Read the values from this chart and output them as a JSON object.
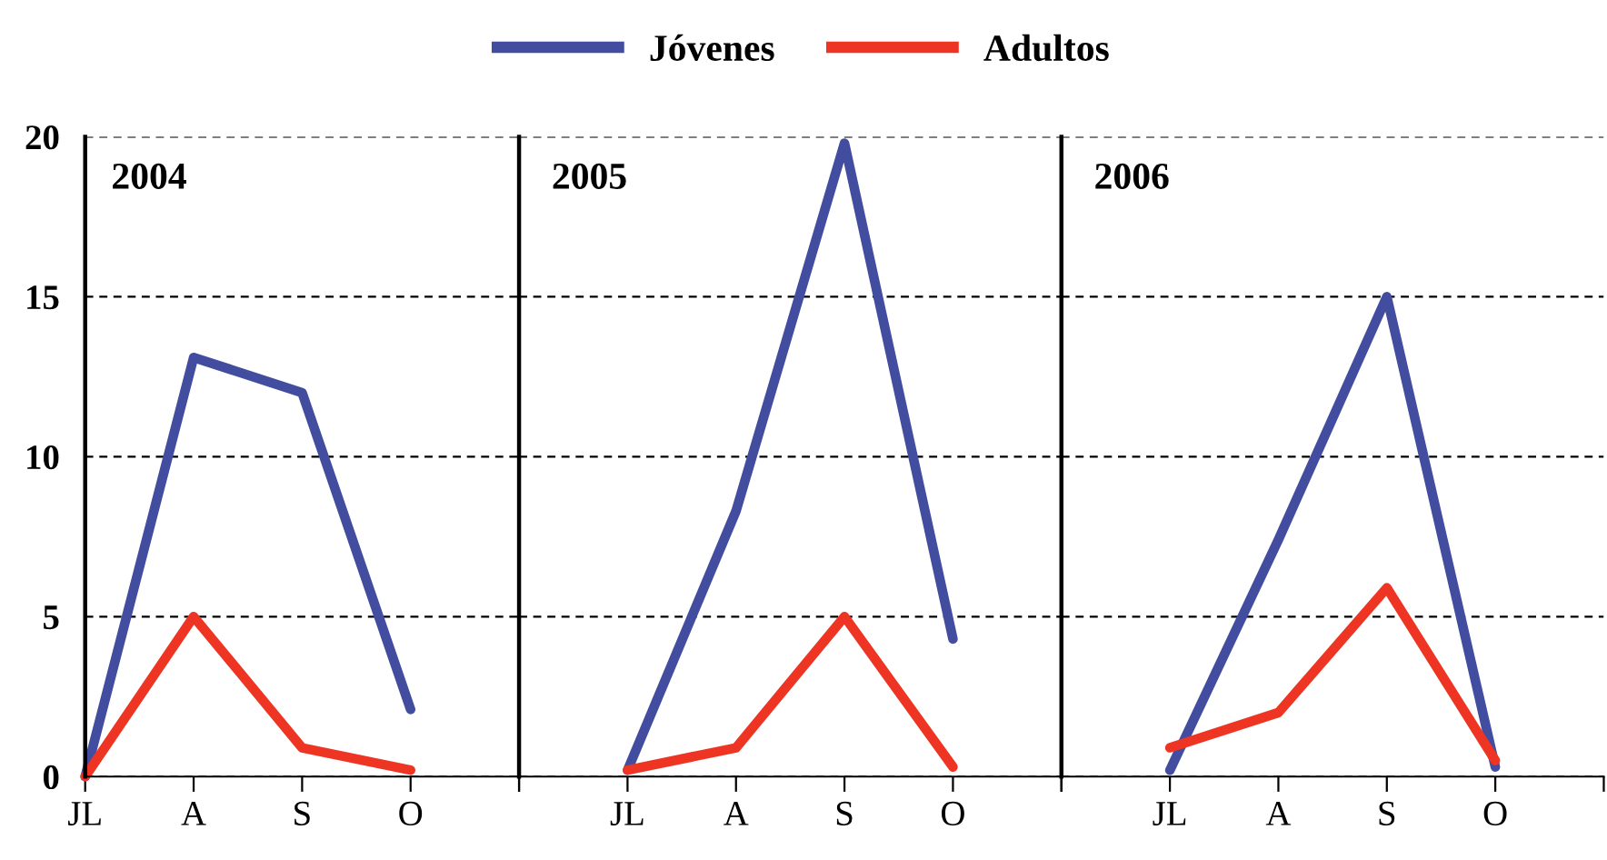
{
  "chart_data": [
    {
      "type": "line",
      "title": "2004",
      "categories": [
        "JL",
        "A",
        "S",
        "O"
      ],
      "ylim": [
        0,
        20
      ],
      "yticks": [
        0,
        5,
        10,
        15,
        20
      ],
      "grid": "y",
      "legend": "top",
      "marker": "none",
      "line_style": "solid",
      "series": [
        {
          "name": "Jóvenes",
          "color": "#434da0",
          "values": [
            0,
            13.1,
            12,
            2.1
          ]
        },
        {
          "name": "Adultos",
          "color": "#ee3524",
          "values": [
            0,
            5,
            0.9,
            0.2
          ]
        }
      ]
    },
    {
      "type": "line",
      "title": "2005",
      "categories": [
        null,
        "JL",
        "A",
        "S",
        "O"
      ],
      "ylim": [
        0,
        20
      ],
      "yticks": [
        0,
        5,
        10,
        15,
        20
      ],
      "grid": "y",
      "tick_labels": "x",
      "marker": "none",
      "line_style": "solid",
      "series": [
        {
          "color": "#434da0",
          "values": [
            null,
            0.2,
            8.3,
            19.8,
            4.3
          ]
        },
        {
          "color": "#ee3524",
          "values": [
            null,
            0.2,
            0.9,
            5,
            0.3
          ]
        }
      ]
    },
    {
      "type": "line",
      "title": "2006",
      "categories": [
        null,
        "JL",
        "A",
        "S",
        "O"
      ],
      "ylim": [
        0,
        20
      ],
      "yticks": [
        0,
        5,
        10,
        15,
        20
      ],
      "grid": "y",
      "tick_labels": "x",
      "marker": "none",
      "line_style": "solid",
      "series": [
        {
          "color": "#434da0",
          "values": [
            null,
            0.2,
            7.4,
            15,
            0.3
          ]
        },
        {
          "color": "#ee3524",
          "values": [
            null,
            0.9,
            2,
            5.9,
            0.5
          ]
        }
      ]
    }
  ]
}
